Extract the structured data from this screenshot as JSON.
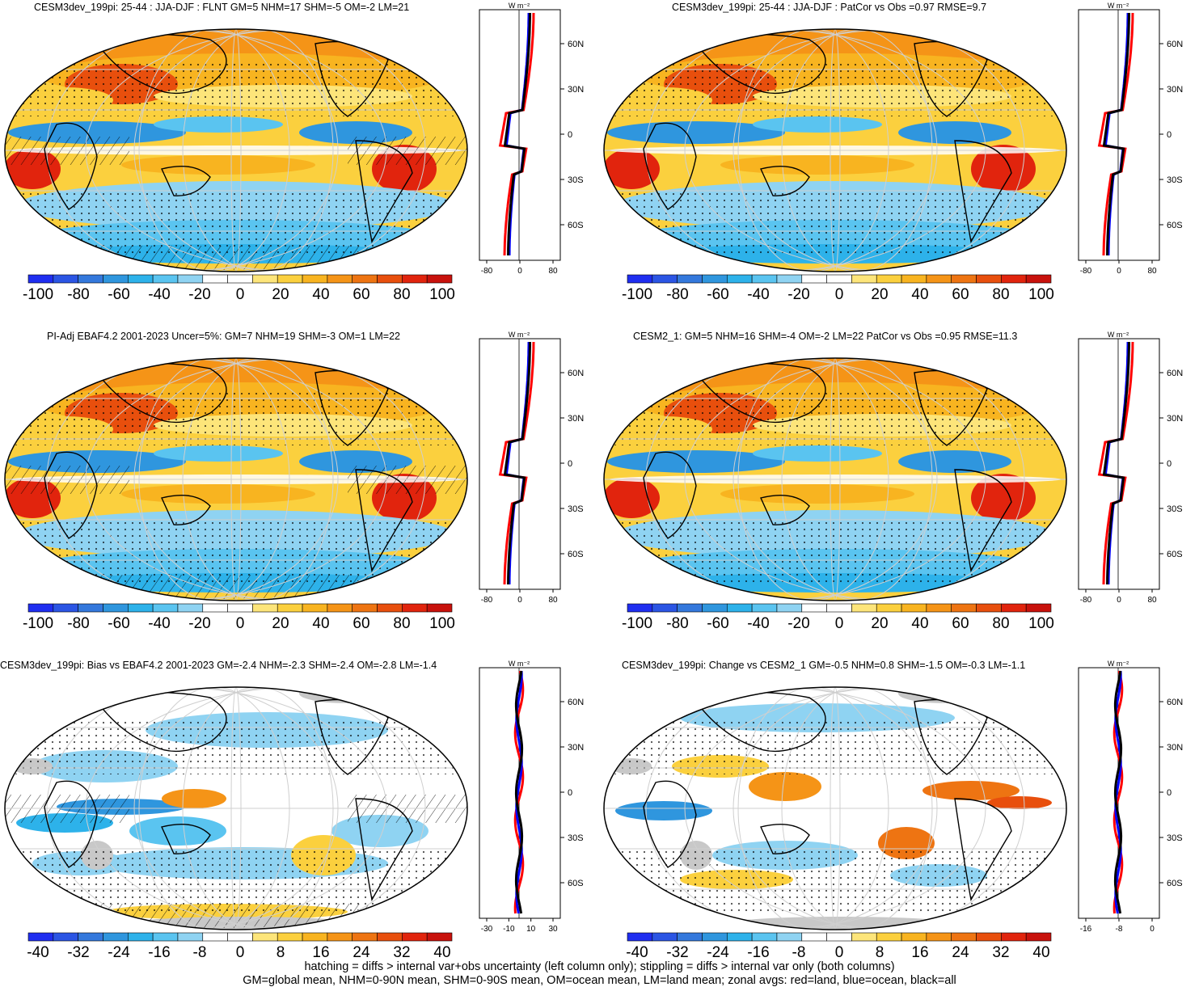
{
  "panels": [
    {
      "title": "CESM3dev_199pi: 25-44 : JJA-DJF : FLNT GM=5 NHM=17 SHM=-5 OM=-2 LM=21",
      "colorbar_ticks": [
        "-100",
        "-80",
        "-60",
        "-40",
        "-20",
        "0",
        "20",
        "40",
        "60",
        "80",
        "100"
      ],
      "profile_units": "W m⁻²",
      "profile_xticks": [
        "-80",
        "0",
        "80"
      ],
      "profile_yticks": [
        "60N",
        "30N",
        "0",
        "30S",
        "60S"
      ],
      "hatching": true
    },
    {
      "title": "CESM3dev_199pi: 25-44 : JJA-DJF : PatCor vs Obs =0.97 RMSE=9.7",
      "colorbar_ticks": [
        "-100",
        "-80",
        "-60",
        "-40",
        "-20",
        "0",
        "20",
        "40",
        "60",
        "80",
        "100"
      ],
      "profile_units": "W m⁻²",
      "profile_xticks": [
        "-80",
        "0",
        "80"
      ],
      "profile_yticks": [
        "60N",
        "30N",
        "0",
        "30S",
        "60S"
      ],
      "hatching": false
    },
    {
      "title": "PI-Adj EBAF4.2 2001-2023 Uncer=5%: GM=7 NHM=19 SHM=-3 OM=1 LM=22",
      "colorbar_ticks": [
        "-100",
        "-80",
        "-60",
        "-40",
        "-20",
        "0",
        "20",
        "40",
        "60",
        "80",
        "100"
      ],
      "profile_units": "W m⁻²",
      "profile_xticks": [
        "-80",
        "0",
        "80"
      ],
      "profile_yticks": [
        "60N",
        "30N",
        "0",
        "30S",
        "60S"
      ],
      "hatching": true
    },
    {
      "title": "CESM2_1: GM=5 NHM=16 SHM=-4 OM=-2 LM=22 PatCor vs Obs =0.95 RMSE=11.3",
      "colorbar_ticks": [
        "-100",
        "-80",
        "-60",
        "-40",
        "-20",
        "0",
        "20",
        "40",
        "60",
        "80",
        "100"
      ],
      "profile_units": "W m⁻²",
      "profile_xticks": [
        "-80",
        "0",
        "80"
      ],
      "profile_yticks": [
        "60N",
        "30N",
        "0",
        "30S",
        "60S"
      ],
      "hatching": false
    },
    {
      "title": "CESM3dev_199pi: Bias vs EBAF4.2 2001-2023 GM=-2.4 NHM=-2.3 SHM=-2.4 OM=-2.8 LM=-1.4",
      "colorbar_ticks": [
        "-40",
        "-32",
        "-24",
        "-16",
        "-8",
        "0",
        "8",
        "16",
        "24",
        "32",
        "40"
      ],
      "profile_units": "W m⁻²",
      "profile_xticks": [
        "-30",
        "-10",
        "10",
        "30"
      ],
      "profile_yticks": [
        "60N",
        "30N",
        "0",
        "30S",
        "60S"
      ],
      "hatching": true
    },
    {
      "title": "CESM3dev_199pi: Change vs CESM2_1 GM=-0.5 NHM=0.8 SHM=-1.5 OM=-0.3 LM=-1.1",
      "colorbar_ticks": [
        "-40",
        "-32",
        "-24",
        "-16",
        "-8",
        "0",
        "8",
        "16",
        "24",
        "32",
        "40"
      ],
      "profile_units": "W m⁻²",
      "profile_xticks": [
        "-16",
        "-8",
        "0"
      ],
      "profile_yticks": [
        "60N",
        "30N",
        "0",
        "30S",
        "60S"
      ],
      "hatching": false
    }
  ],
  "colors": {
    "palette": [
      "#1f2ef0",
      "#2b55e4",
      "#3478dc",
      "#2f96de",
      "#2db2ea",
      "#5ac4f0",
      "#8fd3f2",
      "#ffffff",
      "#ffffff",
      "#fde57a",
      "#fbd03e",
      "#f8b420",
      "#f59417",
      "#ee7412",
      "#e84f0d",
      "#e1240d",
      "#c8120c"
    ],
    "land_gray": "#c8c8c8",
    "land_zonal": "#ff0000",
    "ocean_zonal": "#0000ff",
    "all_zonal": "#000000"
  },
  "footer": {
    "line1": "hatching = diffs > internal var+obs uncertainty (left column only); stippling = diffs > internal var only (both columns)",
    "line2": "GM=global mean, NHM=0-90N mean, SHM=0-90S mean, OM=ocean mean, LM=land mean; zonal avgs: red=land, blue=ocean, black=all"
  }
}
